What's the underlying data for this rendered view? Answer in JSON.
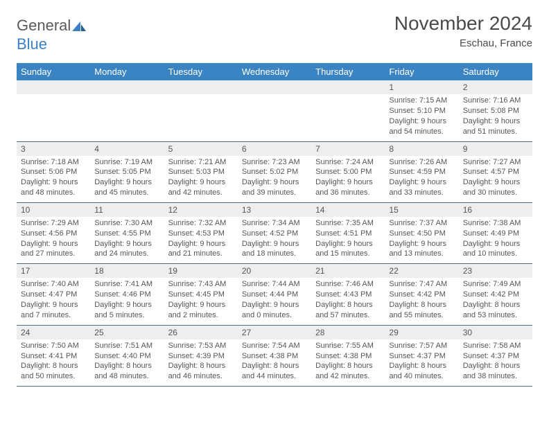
{
  "brand": {
    "part1": "General",
    "part2": "Blue"
  },
  "title": "November 2024",
  "location": "Eschau, France",
  "colors": {
    "header_bg": "#3b84c4",
    "header_text": "#ffffff",
    "daynum_bg": "#eceeef",
    "text": "#555555",
    "rule": "#4a6a8a",
    "logo_gray": "#5a5a5a",
    "logo_blue": "#3b7fc4"
  },
  "daynames": [
    "Sunday",
    "Monday",
    "Tuesday",
    "Wednesday",
    "Thursday",
    "Friday",
    "Saturday"
  ],
  "weeks": [
    [
      null,
      null,
      null,
      null,
      null,
      {
        "n": "1",
        "sr": "7:15 AM",
        "ss": "5:10 PM",
        "dl": "9 hours and 54 minutes."
      },
      {
        "n": "2",
        "sr": "7:16 AM",
        "ss": "5:08 PM",
        "dl": "9 hours and 51 minutes."
      }
    ],
    [
      {
        "n": "3",
        "sr": "7:18 AM",
        "ss": "5:06 PM",
        "dl": "9 hours and 48 minutes."
      },
      {
        "n": "4",
        "sr": "7:19 AM",
        "ss": "5:05 PM",
        "dl": "9 hours and 45 minutes."
      },
      {
        "n": "5",
        "sr": "7:21 AM",
        "ss": "5:03 PM",
        "dl": "9 hours and 42 minutes."
      },
      {
        "n": "6",
        "sr": "7:23 AM",
        "ss": "5:02 PM",
        "dl": "9 hours and 39 minutes."
      },
      {
        "n": "7",
        "sr": "7:24 AM",
        "ss": "5:00 PM",
        "dl": "9 hours and 36 minutes."
      },
      {
        "n": "8",
        "sr": "7:26 AM",
        "ss": "4:59 PM",
        "dl": "9 hours and 33 minutes."
      },
      {
        "n": "9",
        "sr": "7:27 AM",
        "ss": "4:57 PM",
        "dl": "9 hours and 30 minutes."
      }
    ],
    [
      {
        "n": "10",
        "sr": "7:29 AM",
        "ss": "4:56 PM",
        "dl": "9 hours and 27 minutes."
      },
      {
        "n": "11",
        "sr": "7:30 AM",
        "ss": "4:55 PM",
        "dl": "9 hours and 24 minutes."
      },
      {
        "n": "12",
        "sr": "7:32 AM",
        "ss": "4:53 PM",
        "dl": "9 hours and 21 minutes."
      },
      {
        "n": "13",
        "sr": "7:34 AM",
        "ss": "4:52 PM",
        "dl": "9 hours and 18 minutes."
      },
      {
        "n": "14",
        "sr": "7:35 AM",
        "ss": "4:51 PM",
        "dl": "9 hours and 15 minutes."
      },
      {
        "n": "15",
        "sr": "7:37 AM",
        "ss": "4:50 PM",
        "dl": "9 hours and 13 minutes."
      },
      {
        "n": "16",
        "sr": "7:38 AM",
        "ss": "4:49 PM",
        "dl": "9 hours and 10 minutes."
      }
    ],
    [
      {
        "n": "17",
        "sr": "7:40 AM",
        "ss": "4:47 PM",
        "dl": "9 hours and 7 minutes."
      },
      {
        "n": "18",
        "sr": "7:41 AM",
        "ss": "4:46 PM",
        "dl": "9 hours and 5 minutes."
      },
      {
        "n": "19",
        "sr": "7:43 AM",
        "ss": "4:45 PM",
        "dl": "9 hours and 2 minutes."
      },
      {
        "n": "20",
        "sr": "7:44 AM",
        "ss": "4:44 PM",
        "dl": "9 hours and 0 minutes."
      },
      {
        "n": "21",
        "sr": "7:46 AM",
        "ss": "4:43 PM",
        "dl": "8 hours and 57 minutes."
      },
      {
        "n": "22",
        "sr": "7:47 AM",
        "ss": "4:42 PM",
        "dl": "8 hours and 55 minutes."
      },
      {
        "n": "23",
        "sr": "7:49 AM",
        "ss": "4:42 PM",
        "dl": "8 hours and 53 minutes."
      }
    ],
    [
      {
        "n": "24",
        "sr": "7:50 AM",
        "ss": "4:41 PM",
        "dl": "8 hours and 50 minutes."
      },
      {
        "n": "25",
        "sr": "7:51 AM",
        "ss": "4:40 PM",
        "dl": "8 hours and 48 minutes."
      },
      {
        "n": "26",
        "sr": "7:53 AM",
        "ss": "4:39 PM",
        "dl": "8 hours and 46 minutes."
      },
      {
        "n": "27",
        "sr": "7:54 AM",
        "ss": "4:38 PM",
        "dl": "8 hours and 44 minutes."
      },
      {
        "n": "28",
        "sr": "7:55 AM",
        "ss": "4:38 PM",
        "dl": "8 hours and 42 minutes."
      },
      {
        "n": "29",
        "sr": "7:57 AM",
        "ss": "4:37 PM",
        "dl": "8 hours and 40 minutes."
      },
      {
        "n": "30",
        "sr": "7:58 AM",
        "ss": "4:37 PM",
        "dl": "8 hours and 38 minutes."
      }
    ]
  ],
  "labels": {
    "sunrise": "Sunrise: ",
    "sunset": "Sunset: ",
    "daylight": "Daylight: "
  }
}
